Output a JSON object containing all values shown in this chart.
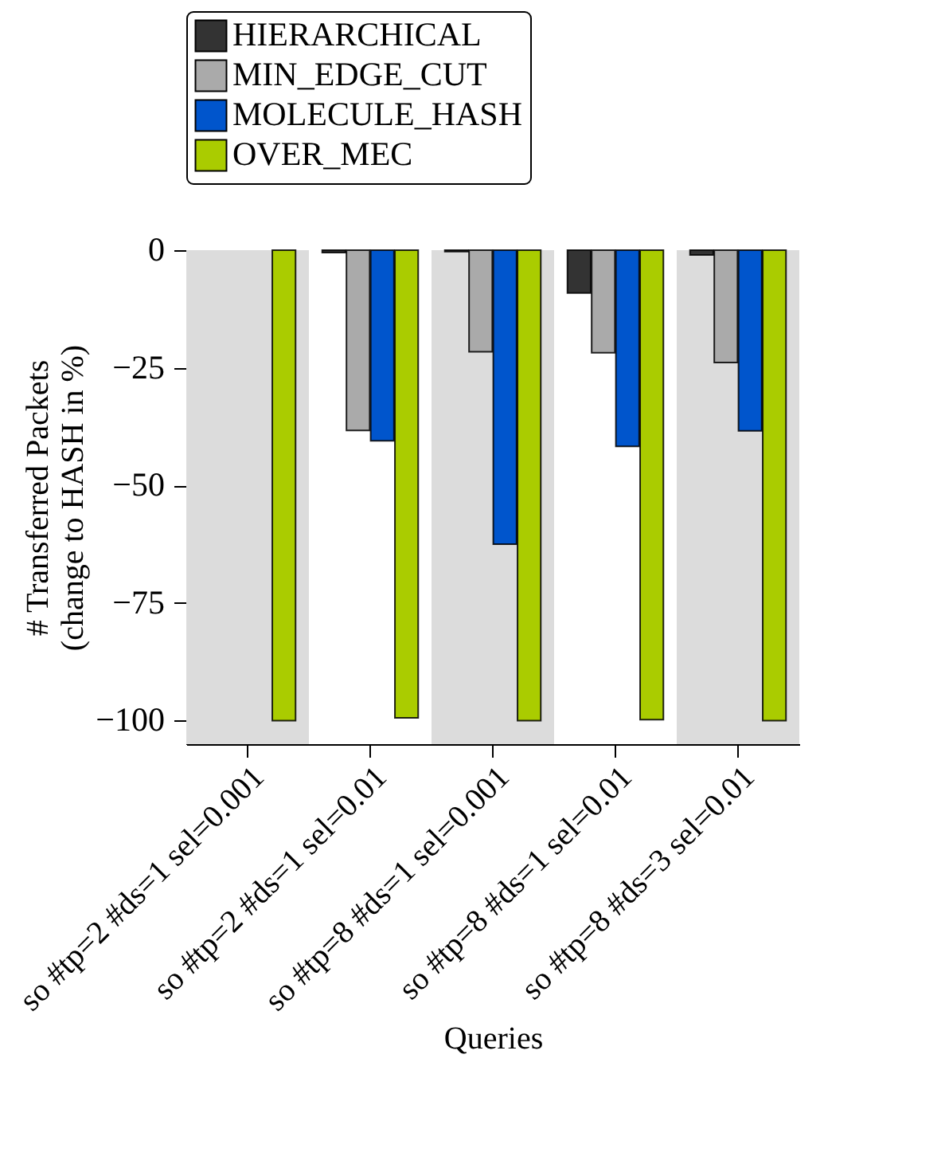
{
  "chart_data": {
    "type": "bar",
    "categories": [
      "so #tp=2 #ds=1 sel=0.001",
      "so #tp=2 #ds=1 sel=0.01",
      "so #tp=8 #ds=1 sel=0.001",
      "so #tp=8 #ds=1 sel=0.01",
      "so #tp=8 #ds=3 sel=0.01"
    ],
    "series": [
      {
        "name": "HIERARCHICAL",
        "color": "#333333",
        "values": [
          null,
          -0.5,
          -0.3,
          -9.1,
          -1
        ]
      },
      {
        "name": "MIN_EDGE_CUT",
        "color": "#aaaaaa",
        "values": [
          null,
          -38.3,
          -21.6,
          -21.8,
          -23.9
        ]
      },
      {
        "name": "MOLECULE_HASH",
        "color": "#0055cc",
        "values": [
          null,
          -40.5,
          -62.5,
          -41.7,
          -38.4
        ]
      },
      {
        "name": "OVER_MEC",
        "color": "#aacc00",
        "values": [
          -100,
          -99.4,
          -100,
          -99.8,
          -100
        ]
      }
    ],
    "xlabel": "Queries",
    "ylabel": "# Transferred Packets\n(change to HASH in %)",
    "ylim": [
      -105,
      0
    ],
    "yticks": [
      {
        "value": 0,
        "label": "0"
      },
      {
        "value": -25,
        "label": "−25"
      },
      {
        "value": -50,
        "label": "−50"
      },
      {
        "value": -75,
        "label": "−75"
      },
      {
        "value": -100,
        "label": "−100"
      }
    ],
    "bands": [
      {
        "axis": "x",
        "from": "so #tp=2 #ds=1 sel=0.001",
        "to": "so #tp=2 #ds=1 sel=0.001",
        "color": "#dcdcdc"
      },
      {
        "axis": "x",
        "from": "so #tp=8 #ds=1 sel=0.001",
        "to": "so #tp=8 #ds=1 sel=0.001",
        "color": "#dcdcdc"
      },
      {
        "axis": "x",
        "from": "so #tp=8 #ds=3 sel=0.01",
        "to": "so #tp=8 #ds=3 sel=0.01",
        "color": "#dcdcdc"
      }
    ],
    "legend": "top"
  }
}
